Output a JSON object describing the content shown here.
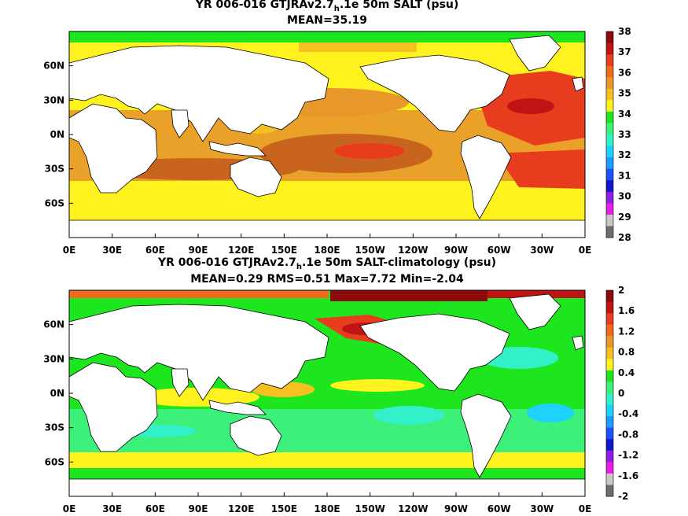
{
  "panels": [
    {
      "title_main": "YR 006-016 GTJRAv2.7",
      "title_sub": "h",
      "title_rest": ".1e 50m SALT (psu)",
      "stats": "MEAN=35.19",
      "lat_labels": [
        "60N",
        "30N",
        "0N",
        "30S",
        "60S"
      ],
      "lon_labels": [
        "0E",
        "30E",
        "60E",
        "90E",
        "120E",
        "150E",
        "180E",
        "150W",
        "120W",
        "90W",
        "60W",
        "30W",
        "0E"
      ],
      "colorbar": {
        "labels": [
          "38",
          "37",
          "36",
          "35",
          "34",
          "33",
          "32",
          "31",
          "30",
          "29",
          "28"
        ],
        "colors": [
          "#8b0a0a",
          "#c01414",
          "#e83c1e",
          "#f06a1e",
          "#e8982a",
          "#f5c020",
          "#fff21e",
          "#1ee61e",
          "#3cf07a",
          "#32f0c8",
          "#1ed2ff",
          "#1e9bff",
          "#1e50ff",
          "#1414c8",
          "#8c1ee6",
          "#e61ee6",
          "#c8c8c8",
          "#6e6e6e"
        ]
      }
    },
    {
      "title_main": "YR 006-016 GTJRAv2.7",
      "title_sub": "h",
      "title_rest": ".1e 50m SALT-climatology (psu)",
      "stats": "MEAN=0.29   RMS=0.51   Max=7.72   Min=-2.04",
      "lat_labels": [
        "60N",
        "30N",
        "0N",
        "30S",
        "60S"
      ],
      "lon_labels": [
        "0E",
        "30E",
        "60E",
        "90E",
        "120E",
        "150E",
        "180E",
        "150W",
        "120W",
        "90W",
        "60W",
        "30W",
        "0E"
      ],
      "colorbar": {
        "labels": [
          "2",
          "1.6",
          "1.2",
          "0.8",
          "0.4",
          "0",
          "-0.4",
          "-0.8",
          "-1.2",
          "-1.6",
          "-2"
        ],
        "colors": [
          "#8b0a0a",
          "#c01414",
          "#e83c1e",
          "#f06a1e",
          "#e8982a",
          "#f5c020",
          "#fff21e",
          "#1ee61e",
          "#3cf07a",
          "#32f0c8",
          "#1ed2ff",
          "#1e9bff",
          "#1e50ff",
          "#1414c8",
          "#8c1ee6",
          "#e61ee6",
          "#c8c8c8",
          "#6e6e6e"
        ]
      }
    }
  ]
}
